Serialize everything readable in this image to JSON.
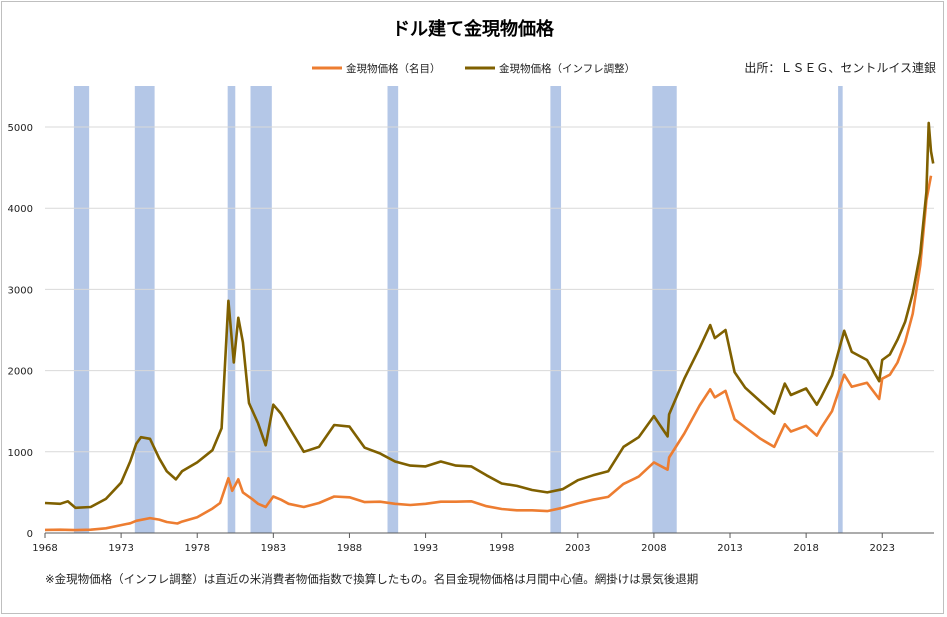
{
  "chart_data": {
    "type": "line",
    "title": "ドル建て金現物価格",
    "source": "出所：ＬＳＥＧ、セントルイス連銀",
    "footnote": "※金現物価格（インフレ調整）は直近の米消費者物価指数で換算したもの。名目金現物価格は月間中心値。網掛けは景気後退期",
    "xlim": [
      1968,
      2026.4
    ],
    "ylim": [
      0,
      5000
    ],
    "x_ticks": [
      "1968",
      "1973",
      "1978",
      "1983",
      "1988",
      "1993",
      "1998",
      "2003",
      "2008",
      "2013",
      "2018",
      "2023"
    ],
    "y_ticks": [
      "0",
      "1000",
      "2000",
      "3000",
      "4000",
      "5000"
    ],
    "grid": true,
    "legend_position": "top",
    "recessions": [
      [
        1969.9,
        1970.9
      ],
      [
        1973.9,
        1975.2
      ],
      [
        1980.0,
        1980.5
      ],
      [
        1981.5,
        1982.9
      ],
      [
        1990.5,
        1991.2
      ],
      [
        2001.2,
        2001.9
      ],
      [
        2007.9,
        2009.5
      ],
      [
        2020.1,
        2020.4
      ]
    ],
    "series": [
      {
        "name": "金現物価格（名目）",
        "color": "#ed7d31",
        "points": [
          [
            1968,
            38
          ],
          [
            1969,
            41
          ],
          [
            1970,
            36
          ],
          [
            1971,
            41
          ],
          [
            1972,
            58
          ],
          [
            1973,
            97
          ],
          [
            1973.6,
            120
          ],
          [
            1974,
            150
          ],
          [
            1974.9,
            183
          ],
          [
            1975.5,
            165
          ],
          [
            1976,
            135
          ],
          [
            1976.7,
            117
          ],
          [
            1977,
            140
          ],
          [
            1978,
            193
          ],
          [
            1979,
            300
          ],
          [
            1979.5,
            370
          ],
          [
            1980.05,
            675
          ],
          [
            1980.3,
            520
          ],
          [
            1980.7,
            660
          ],
          [
            1981,
            500
          ],
          [
            1981.6,
            420
          ],
          [
            1982,
            360
          ],
          [
            1982.5,
            320
          ],
          [
            1983,
            450
          ],
          [
            1983.5,
            410
          ],
          [
            1984,
            360
          ],
          [
            1985,
            320
          ],
          [
            1986,
            370
          ],
          [
            1987,
            450
          ],
          [
            1988,
            440
          ],
          [
            1989,
            380
          ],
          [
            1990,
            385
          ],
          [
            1991,
            360
          ],
          [
            1992,
            345
          ],
          [
            1993,
            360
          ],
          [
            1994,
            385
          ],
          [
            1995,
            385
          ],
          [
            1996,
            390
          ],
          [
            1997,
            330
          ],
          [
            1998,
            295
          ],
          [
            1999,
            280
          ],
          [
            2000,
            280
          ],
          [
            2001,
            270
          ],
          [
            2002,
            310
          ],
          [
            2003,
            365
          ],
          [
            2004,
            410
          ],
          [
            2005,
            445
          ],
          [
            2006,
            605
          ],
          [
            2007,
            695
          ],
          [
            2008,
            870
          ],
          [
            2008.9,
            780
          ],
          [
            2009,
            930
          ],
          [
            2010,
            1225
          ],
          [
            2011,
            1570
          ],
          [
            2011.7,
            1770
          ],
          [
            2012,
            1670
          ],
          [
            2012.7,
            1750
          ],
          [
            2013.3,
            1400
          ],
          [
            2014,
            1300
          ],
          [
            2015,
            1160
          ],
          [
            2015.9,
            1060
          ],
          [
            2016.6,
            1340
          ],
          [
            2017,
            1250
          ],
          [
            2018,
            1320
          ],
          [
            2018.7,
            1200
          ],
          [
            2019,
            1300
          ],
          [
            2019.7,
            1500
          ],
          [
            2020.5,
            1950
          ],
          [
            2021,
            1800
          ],
          [
            2022,
            1850
          ],
          [
            2022.8,
            1650
          ],
          [
            2023,
            1900
          ],
          [
            2023.5,
            1950
          ],
          [
            2024,
            2100
          ],
          [
            2024.5,
            2350
          ],
          [
            2025,
            2700
          ],
          [
            2025.5,
            3300
          ],
          [
            2025.9,
            4100
          ],
          [
            2026.2,
            4400
          ]
        ]
      },
      {
        "name": "金現物価格（インフレ調整）",
        "color": "#7f6000",
        "points": [
          [
            1968,
            370
          ],
          [
            1969,
            360
          ],
          [
            1969.5,
            390
          ],
          [
            1970,
            310
          ],
          [
            1971,
            320
          ],
          [
            1972,
            420
          ],
          [
            1973,
            620
          ],
          [
            1973.6,
            880
          ],
          [
            1974,
            1100
          ],
          [
            1974.3,
            1180
          ],
          [
            1974.9,
            1160
          ],
          [
            1975.5,
            920
          ],
          [
            1976,
            760
          ],
          [
            1976.6,
            660
          ],
          [
            1977,
            760
          ],
          [
            1978,
            870
          ],
          [
            1979,
            1020
          ],
          [
            1979.6,
            1290
          ],
          [
            1980.05,
            2860
          ],
          [
            1980.4,
            2100
          ],
          [
            1980.7,
            2650
          ],
          [
            1981,
            2350
          ],
          [
            1981.4,
            1600
          ],
          [
            1982,
            1350
          ],
          [
            1982.5,
            1080
          ],
          [
            1983,
            1580
          ],
          [
            1983.5,
            1470
          ],
          [
            1984,
            1310
          ],
          [
            1985,
            1000
          ],
          [
            1986,
            1060
          ],
          [
            1987,
            1330
          ],
          [
            1988,
            1310
          ],
          [
            1989,
            1050
          ],
          [
            1990,
            980
          ],
          [
            1991,
            880
          ],
          [
            1992,
            830
          ],
          [
            1993,
            820
          ],
          [
            1994,
            880
          ],
          [
            1995,
            830
          ],
          [
            1996,
            820
          ],
          [
            1997,
            710
          ],
          [
            1998,
            610
          ],
          [
            1999,
            580
          ],
          [
            2000,
            530
          ],
          [
            2001,
            500
          ],
          [
            2002,
            540
          ],
          [
            2003,
            650
          ],
          [
            2004,
            710
          ],
          [
            2005,
            760
          ],
          [
            2006,
            1060
          ],
          [
            2007,
            1180
          ],
          [
            2008,
            1440
          ],
          [
            2008.9,
            1190
          ],
          [
            2009,
            1460
          ],
          [
            2010,
            1900
          ],
          [
            2011,
            2280
          ],
          [
            2011.7,
            2560
          ],
          [
            2012,
            2400
          ],
          [
            2012.7,
            2500
          ],
          [
            2013.3,
            1980
          ],
          [
            2014,
            1790
          ],
          [
            2015,
            1620
          ],
          [
            2015.9,
            1470
          ],
          [
            2016.6,
            1840
          ],
          [
            2017,
            1700
          ],
          [
            2018,
            1780
          ],
          [
            2018.7,
            1580
          ],
          [
            2019,
            1680
          ],
          [
            2019.7,
            1940
          ],
          [
            2020.5,
            2490
          ],
          [
            2021,
            2230
          ],
          [
            2022,
            2130
          ],
          [
            2022.8,
            1870
          ],
          [
            2023,
            2130
          ],
          [
            2023.5,
            2200
          ],
          [
            2024,
            2380
          ],
          [
            2024.5,
            2600
          ],
          [
            2025,
            2950
          ],
          [
            2025.5,
            3450
          ],
          [
            2025.9,
            4200
          ],
          [
            2026.05,
            5050
          ],
          [
            2026.2,
            4700
          ],
          [
            2026.35,
            4550
          ]
        ]
      }
    ]
  }
}
